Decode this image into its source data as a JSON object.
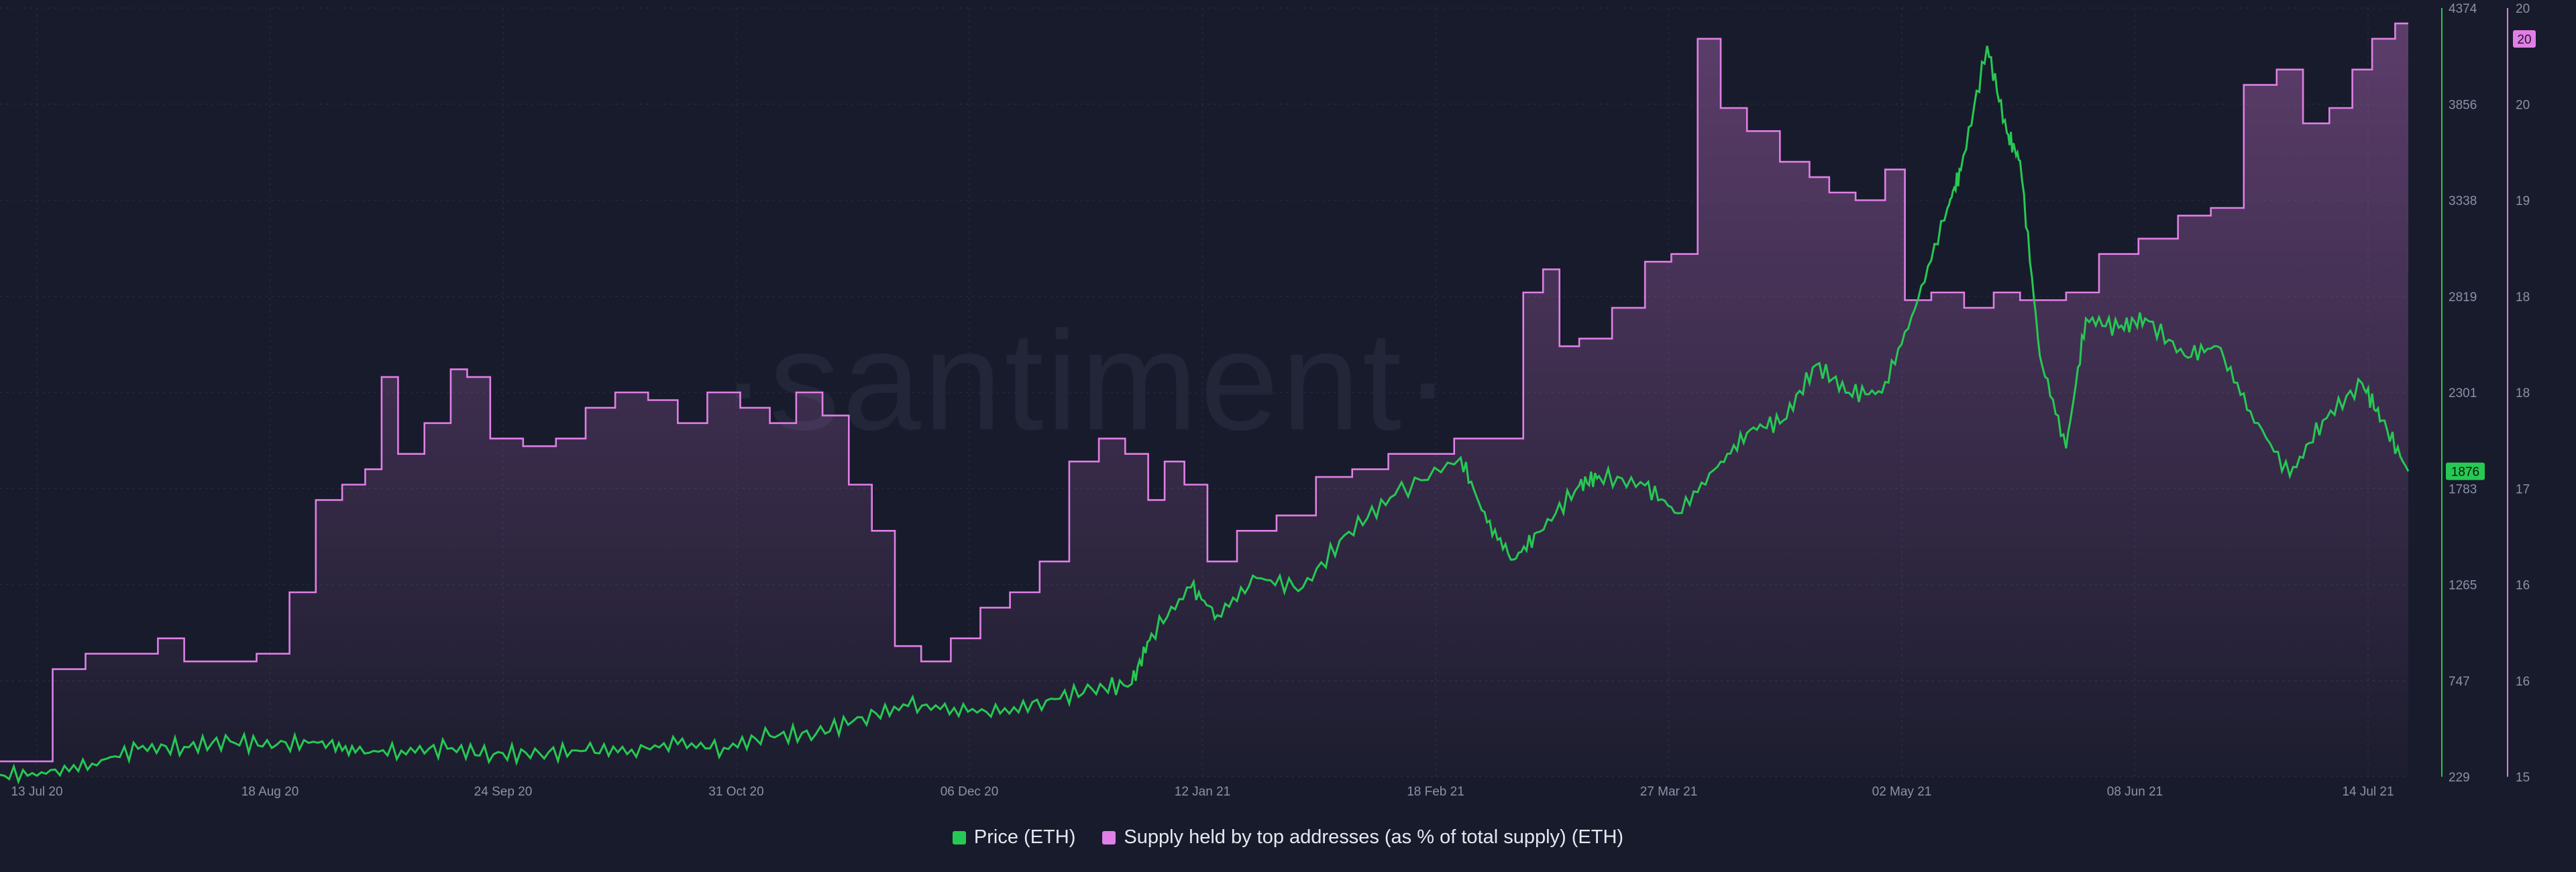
{
  "chart_data": {
    "type": "line",
    "watermark": "·santiment·",
    "x_ticks": [
      "13 Jul 20",
      "18 Aug 20",
      "24 Sep 20",
      "31 Oct 20",
      "06 Dec 20",
      "12 Jan 21",
      "18 Feb 21",
      "27 Mar 21",
      "02 May 21",
      "08 Jun 21",
      "14 Jul 21"
    ],
    "x_range": [
      "2020-07-13",
      "2021-07-14"
    ],
    "y_left": {
      "ticks": [
        "229",
        "747",
        "1265",
        "1783",
        "2301",
        "2819",
        "3338",
        "3856",
        "4374"
      ],
      "ylim": [
        229,
        4374
      ]
    },
    "y_right": {
      "ticks": [
        "15",
        "16",
        "16",
        "17",
        "18",
        "18",
        "19",
        "20",
        "20"
      ],
      "ylim": [
        15,
        20
      ]
    },
    "current_price_label": "1876",
    "current_supply_label": "20",
    "colors": {
      "price": "#26c953",
      "supply": "#e07fe5",
      "background": "#181b2b",
      "grid": "#262a3c"
    },
    "series": [
      {
        "name": "Price (ETH)",
        "axis": "left",
        "color": "#26c953",
        "points": [
          [
            "2020-07-13",
            240
          ],
          [
            "2020-07-20",
            245
          ],
          [
            "2020-07-27",
            300
          ],
          [
            "2020-08-03",
            380
          ],
          [
            "2020-08-10",
            390
          ],
          [
            "2020-08-17",
            420
          ],
          [
            "2020-08-24",
            400
          ],
          [
            "2020-08-31",
            420
          ],
          [
            "2020-09-05",
            360
          ],
          [
            "2020-09-12",
            370
          ],
          [
            "2020-09-19",
            380
          ],
          [
            "2020-09-26",
            350
          ],
          [
            "2020-10-03",
            355
          ],
          [
            "2020-10-10",
            370
          ],
          [
            "2020-10-17",
            375
          ],
          [
            "2020-10-24",
            405
          ],
          [
            "2020-10-31",
            385
          ],
          [
            "2020-11-07",
            450
          ],
          [
            "2020-11-14",
            460
          ],
          [
            "2020-11-21",
            550
          ],
          [
            "2020-11-28",
            610
          ],
          [
            "2020-12-05",
            600
          ],
          [
            "2020-12-12",
            570
          ],
          [
            "2020-12-19",
            640
          ],
          [
            "2020-12-26",
            700
          ],
          [
            "2021-01-01",
            730
          ],
          [
            "2021-01-04",
            1000
          ],
          [
            "2021-01-10",
            1250
          ],
          [
            "2021-01-14",
            1100
          ],
          [
            "2021-01-20",
            1300
          ],
          [
            "2021-01-27",
            1250
          ],
          [
            "2021-02-03",
            1550
          ],
          [
            "2021-02-10",
            1750
          ],
          [
            "2021-02-20",
            1950
          ],
          [
            "2021-02-24",
            1600
          ],
          [
            "2021-02-28",
            1400
          ],
          [
            "2021-03-04",
            1550
          ],
          [
            "2021-03-10",
            1800
          ],
          [
            "2021-03-13",
            1850
          ],
          [
            "2021-03-20",
            1800
          ],
          [
            "2021-03-25",
            1650
          ],
          [
            "2021-03-31",
            1900
          ],
          [
            "2021-04-05",
            2100
          ],
          [
            "2021-04-10",
            2150
          ],
          [
            "2021-04-15",
            2450
          ],
          [
            "2021-04-20",
            2300
          ],
          [
            "2021-04-25",
            2300
          ],
          [
            "2021-04-30",
            2750
          ],
          [
            "2021-05-05",
            3300
          ],
          [
            "2021-05-07",
            3500
          ],
          [
            "2021-05-11",
            4170
          ],
          [
            "2021-05-14",
            3700
          ],
          [
            "2021-05-16",
            3550
          ],
          [
            "2021-05-19",
            2500
          ],
          [
            "2021-05-23",
            2000
          ],
          [
            "2021-05-26",
            2700
          ],
          [
            "2021-05-31",
            2650
          ],
          [
            "2021-06-04",
            2700
          ],
          [
            "2021-06-10",
            2500
          ],
          [
            "2021-06-15",
            2550
          ],
          [
            "2021-06-20",
            2200
          ],
          [
            "2021-06-26",
            1850
          ],
          [
            "2021-07-01",
            2150
          ],
          [
            "2021-07-07",
            2350
          ],
          [
            "2021-07-10",
            2150
          ],
          [
            "2021-07-14",
            1876
          ]
        ]
      },
      {
        "name": "Supply held by top addresses (as % of total supply) (ETH)",
        "axis": "right",
        "color": "#e07fe5",
        "points": [
          [
            "2020-07-13",
            15.1
          ],
          [
            "2020-07-18",
            15.1
          ],
          [
            "2020-07-24",
            15.7
          ],
          [
            "2020-07-28",
            15.8
          ],
          [
            "2020-08-04",
            15.8
          ],
          [
            "2020-08-08",
            15.9
          ],
          [
            "2020-08-12",
            15.75
          ],
          [
            "2020-08-18",
            15.75
          ],
          [
            "2020-08-24",
            15.8
          ],
          [
            "2020-08-28",
            16.2
          ],
          [
            "2020-09-01",
            16.8
          ],
          [
            "2020-09-05",
            16.9
          ],
          [
            "2020-09-08",
            17.0
          ],
          [
            "2020-09-10",
            17.6
          ],
          [
            "2020-09-13",
            17.1
          ],
          [
            "2020-09-18",
            17.3
          ],
          [
            "2020-09-21",
            17.65
          ],
          [
            "2020-09-23",
            17.6
          ],
          [
            "2020-09-28",
            17.2
          ],
          [
            "2020-10-03",
            17.15
          ],
          [
            "2020-10-08",
            17.2
          ],
          [
            "2020-10-12",
            17.4
          ],
          [
            "2020-10-17",
            17.5
          ],
          [
            "2020-10-22",
            17.45
          ],
          [
            "2020-10-26",
            17.3
          ],
          [
            "2020-10-31",
            17.5
          ],
          [
            "2020-11-05",
            17.4
          ],
          [
            "2020-11-09",
            17.3
          ],
          [
            "2020-11-13",
            17.5
          ],
          [
            "2020-11-17",
            17.35
          ],
          [
            "2020-11-21",
            16.9
          ],
          [
            "2020-11-24",
            16.6
          ],
          [
            "2020-11-28",
            15.85
          ],
          [
            "2020-12-02",
            15.75
          ],
          [
            "2020-12-07",
            15.9
          ],
          [
            "2020-12-11",
            16.1
          ],
          [
            "2020-12-16",
            16.2
          ],
          [
            "2020-12-20",
            16.4
          ],
          [
            "2020-12-25",
            17.05
          ],
          [
            "2020-12-29",
            17.2
          ],
          [
            "2021-01-02",
            17.1
          ],
          [
            "2021-01-05",
            16.8
          ],
          [
            "2021-01-07",
            17.05
          ],
          [
            "2021-01-11",
            16.9
          ],
          [
            "2021-01-14",
            16.4
          ],
          [
            "2021-01-20",
            16.6
          ],
          [
            "2021-01-26",
            16.7
          ],
          [
            "2021-02-01",
            16.95
          ],
          [
            "2021-02-06",
            17.0
          ],
          [
            "2021-02-12",
            17.1
          ],
          [
            "2021-02-16",
            17.1
          ],
          [
            "2021-02-22",
            17.2
          ],
          [
            "2021-02-28",
            17.2
          ],
          [
            "2021-03-03",
            18.15
          ],
          [
            "2021-03-06",
            18.3
          ],
          [
            "2021-03-08",
            17.8
          ],
          [
            "2021-03-12",
            17.85
          ],
          [
            "2021-03-18",
            18.05
          ],
          [
            "2021-03-22",
            18.35
          ],
          [
            "2021-03-26",
            18.4
          ],
          [
            "2021-03-30",
            19.8
          ],
          [
            "2021-04-02",
            19.35
          ],
          [
            "2021-04-07",
            19.2
          ],
          [
            "2021-04-12",
            19.0
          ],
          [
            "2021-04-16",
            18.9
          ],
          [
            "2021-04-18",
            18.8
          ],
          [
            "2021-04-24",
            18.75
          ],
          [
            "2021-04-27",
            18.95
          ],
          [
            "2021-04-30",
            18.1
          ],
          [
            "2021-05-05",
            18.15
          ],
          [
            "2021-05-10",
            18.05
          ],
          [
            "2021-05-14",
            18.15
          ],
          [
            "2021-05-18",
            18.1
          ],
          [
            "2021-05-21",
            18.1
          ],
          [
            "2021-05-25",
            18.15
          ],
          [
            "2021-05-31",
            18.4
          ],
          [
            "2021-06-06",
            18.5
          ],
          [
            "2021-06-12",
            18.65
          ],
          [
            "2021-06-16",
            18.7
          ],
          [
            "2021-06-22",
            19.5
          ],
          [
            "2021-06-26",
            19.6
          ],
          [
            "2021-06-30",
            19.25
          ],
          [
            "2021-07-04",
            19.35
          ],
          [
            "2021-07-07",
            19.6
          ],
          [
            "2021-07-10",
            19.8
          ],
          [
            "2021-07-14",
            19.9
          ]
        ]
      }
    ],
    "legend_position": "bottom",
    "grid": true
  }
}
